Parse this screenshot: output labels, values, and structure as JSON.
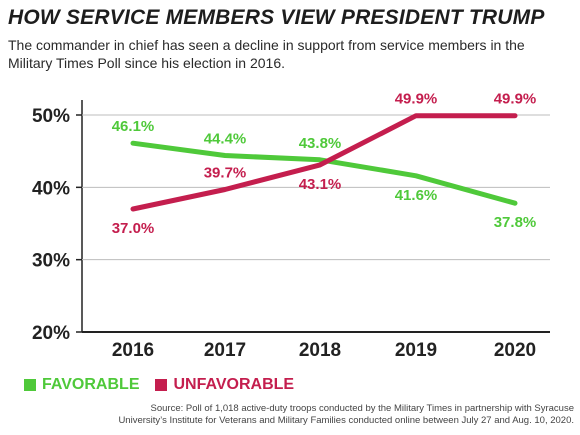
{
  "title": "HOW SERVICE MEMBERS VIEW PRESIDENT TRUMP",
  "subtitle": "The commander in chief has seen a decline in support from service members in the Military Times Poll since his election in 2016.",
  "source": "Source: Poll of 1,018 active-duty troops conducted by the Military Times in partnership with Syracuse University’s Institute for Veterans and Military Families conducted online between July 27 and Aug. 10, 2020.",
  "colors": {
    "favorable": "#4fc93a",
    "unfavorable": "#c41e4e",
    "axis": "#222222",
    "grid": "#bdbdbd"
  },
  "chart_data": {
    "type": "line",
    "title": "HOW SERVICE MEMBERS VIEW PRESIDENT TRUMP",
    "categories": [
      "2016",
      "2017",
      "2018",
      "2019",
      "2020"
    ],
    "y_ticks": [
      "20%",
      "30%",
      "40%",
      "50%"
    ],
    "ylim": [
      20,
      50
    ],
    "grid": true,
    "legend_position": "bottom-left",
    "series": [
      {
        "name": "FAVORABLE",
        "color": "#4fc93a",
        "values": [
          46.1,
          44.4,
          43.8,
          41.6,
          37.8
        ],
        "labels": [
          "46.1%",
          "44.4%",
          "43.8%",
          "41.6%",
          "37.8%"
        ]
      },
      {
        "name": "UNFAVORABLE",
        "color": "#c41e4e",
        "values": [
          37.0,
          39.7,
          43.1,
          49.9,
          49.9
        ],
        "labels": [
          "37.0%",
          "39.7%",
          "43.1%",
          "49.9%",
          "49.9%"
        ]
      }
    ]
  }
}
